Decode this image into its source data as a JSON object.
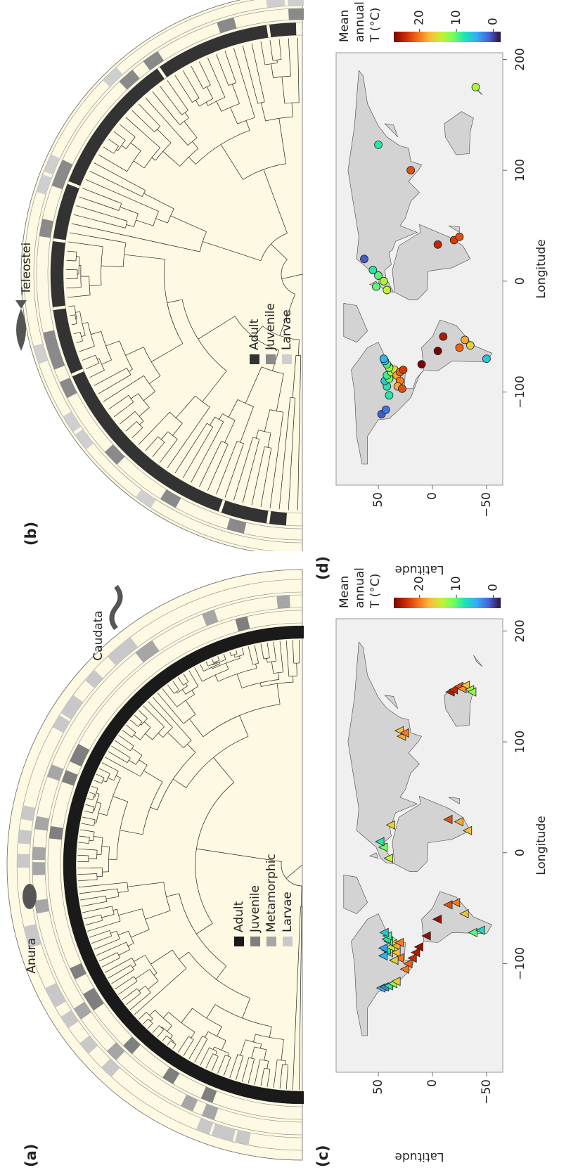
{
  "tree_a": {
    "label": "(a)",
    "clades": [
      "Anura",
      "Caudata"
    ],
    "legend": [
      {
        "name": "Adult",
        "color": "#1a1a1a"
      },
      {
        "name": "Juvenile",
        "color": "#7f7f7f"
      },
      {
        "name": "Metamorphic",
        "color": "#a6a6a6"
      },
      {
        "name": "Larvae",
        "color": "#c8c8c8"
      }
    ]
  },
  "tree_b": {
    "label": "(b)",
    "clades": [
      "Teleostei"
    ],
    "legend": [
      {
        "name": "Adult",
        "color": "#333333"
      },
      {
        "name": "Juvenile",
        "color": "#8a8a8a"
      },
      {
        "name": "Larvae",
        "color": "#cfcfcf"
      }
    ]
  },
  "chart_data": [
    {
      "type": "scatter",
      "label": "(c)",
      "marker": "triangle",
      "xlabel": "Longitude",
      "ylabel": "Latitude",
      "xlim": [
        -198,
        211
      ],
      "ylim": [
        -65,
        89
      ],
      "xticks": [
        {
          "value": -100,
          "label": "−100"
        },
        0,
        100,
        200
      ],
      "yticks": [
        {
          "value": -50,
          "label": "−50"
        },
        0,
        50
      ],
      "colorbar_label": [
        "Mean",
        "annual",
        "T (°C)"
      ],
      "clim": [
        -2,
        27
      ],
      "cticks": [
        0,
        10,
        20
      ],
      "colormap": [
        "#30123b",
        "#4662d7",
        "#36aaf9",
        "#1ae4b6",
        "#72fe5e",
        "#c8ef34",
        "#faba39",
        "#f66b19",
        "#ca2a04",
        "#7a0403"
      ],
      "x": [
        -122,
        -121,
        -120,
        -118,
        -116,
        -105,
        -100,
        -95,
        -90,
        -85,
        -90,
        -88,
        -85,
        -82,
        -80,
        -78,
        -75,
        -84,
        -81,
        -90,
        -95,
        -97,
        -93,
        -86,
        -72,
        -75,
        -60,
        -47,
        -45,
        -55,
        -72,
        -70,
        -5,
        5,
        10,
        25,
        28,
        20,
        30,
        105,
        110,
        108,
        145,
        147,
        150,
        148,
        151,
        147,
        145
      ],
      "y": [
        47,
        44,
        40,
        36,
        33,
        25,
        22,
        18,
        15,
        12,
        40,
        42,
        38,
        36,
        40,
        42,
        41,
        33,
        30,
        33,
        30,
        35,
        45,
        45,
        44,
        5,
        -5,
        -15,
        -22,
        -30,
        -38,
        -45,
        40,
        45,
        48,
        38,
        -25,
        -33,
        -15,
        28,
        30,
        25,
        -17,
        -20,
        -25,
        -28,
        -31,
        -35,
        -37
      ],
      "values": [
        5,
        3,
        8,
        12,
        16,
        20,
        21,
        24,
        25,
        26,
        12,
        8,
        14,
        15,
        10,
        8,
        9,
        18,
        20,
        17,
        20,
        16,
        5,
        4,
        6,
        26,
        26,
        22,
        20,
        17,
        10,
        7,
        14,
        11,
        8,
        16,
        18,
        17,
        22,
        18,
        17,
        20,
        25,
        24,
        22,
        19,
        17,
        13,
        12
      ]
    },
    {
      "type": "scatter",
      "label": "(d)",
      "marker": "circle",
      "xlabel": "Longitude",
      "ylabel": "Latitude",
      "xlim": [
        -184,
        206
      ],
      "ylim": [
        -65,
        89
      ],
      "xticks": [
        {
          "value": -100,
          "label": "−100"
        },
        0,
        100,
        200
      ],
      "yticks": [
        {
          "value": -50,
          "label": "−50"
        },
        0,
        50
      ],
      "colorbar_label": [
        "Mean",
        "annual",
        "T (°C)"
      ],
      "clim": [
        -2,
        27
      ],
      "cticks": [
        0,
        10,
        20
      ],
      "colormap": [
        "#30123b",
        "#4662d7",
        "#36aaf9",
        "#1ae4b6",
        "#72fe5e",
        "#c8ef34",
        "#faba39",
        "#f66b19",
        "#ca2a04",
        "#7a0403"
      ],
      "x": [
        -120,
        -116,
        -103,
        -95,
        -90,
        -88,
        -85,
        -82,
        -80,
        -78,
        -75,
        -72,
        -85,
        -82,
        -90,
        -95,
        -97,
        -80,
        -70,
        -75,
        -63,
        -50,
        -60,
        -53,
        -58,
        -70,
        -8,
        -5,
        5,
        10,
        20,
        0,
        33,
        37,
        40,
        100,
        123,
        175
      ],
      "y": [
        47,
        43,
        40,
        42,
        44,
        40,
        42,
        38,
        35,
        40,
        42,
        44,
        33,
        30,
        30,
        32,
        28,
        27,
        45,
        10,
        -5,
        -10,
        -25,
        -30,
        -35,
        -50,
        42,
        52,
        50,
        55,
        63,
        45,
        -5,
        -20,
        -25,
        20,
        50,
        -40
      ],
      "values": [
        1,
        2,
        8,
        8,
        6,
        11,
        9,
        13,
        15,
        12,
        9,
        6,
        18,
        21,
        20,
        18,
        22,
        23,
        5,
        27,
        27,
        25,
        21,
        18,
        16,
        6,
        14,
        10,
        10,
        8,
        1,
        13,
        24,
        23,
        22,
        22,
        8,
        13
      ]
    }
  ]
}
